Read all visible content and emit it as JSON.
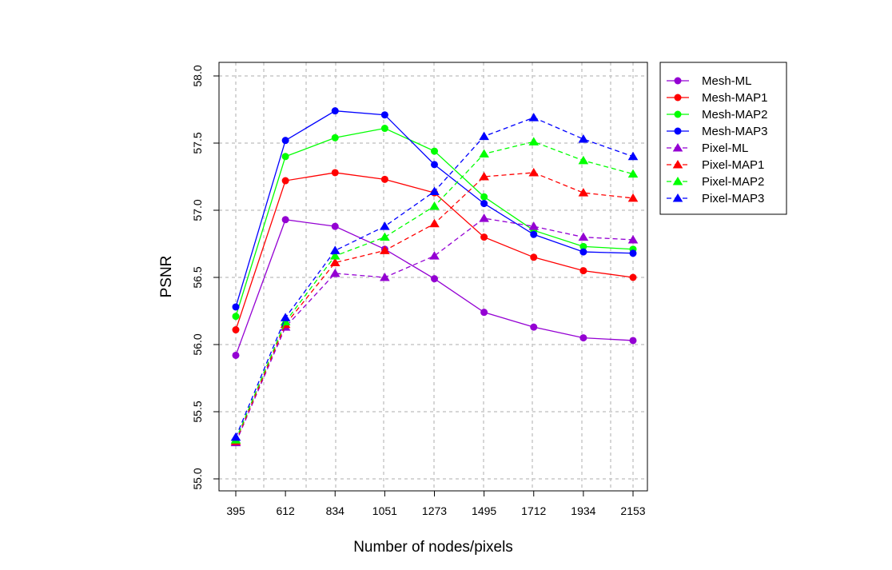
{
  "chart_data": {
    "type": "line",
    "title": "",
    "xlabel": "Number of nodes/pixels",
    "ylabel": "PSNR",
    "categories": [
      "395",
      "612",
      "834",
      "1051",
      "1273",
      "1495",
      "1712",
      "1934",
      "2153"
    ],
    "ylim": [
      55.0,
      58.0
    ],
    "yticks": [
      "55.0",
      "55.5",
      "56.0",
      "56.5",
      "57.0",
      "57.5",
      "58.0"
    ],
    "grid": true,
    "legend_position": "top-right, outside plot",
    "series": [
      {
        "name": "Mesh-ML",
        "color": "#9400D3",
        "linestyle": "solid",
        "marker": "circle",
        "values": [
          55.92,
          56.93,
          56.88,
          56.71,
          56.49,
          56.24,
          56.13,
          56.05,
          56.03
        ]
      },
      {
        "name": "Mesh-MAP1",
        "color": "#FF0000",
        "linestyle": "solid",
        "marker": "circle",
        "values": [
          56.11,
          57.22,
          57.28,
          57.23,
          57.13,
          56.8,
          56.65,
          56.55,
          56.5
        ]
      },
      {
        "name": "Mesh-MAP2",
        "color": "#00FF00",
        "linestyle": "solid",
        "marker": "circle",
        "values": [
          56.21,
          57.4,
          57.54,
          57.61,
          57.44,
          57.1,
          56.85,
          56.73,
          56.71
        ]
      },
      {
        "name": "Mesh-MAP3",
        "color": "#0000FF",
        "linestyle": "solid",
        "marker": "circle",
        "values": [
          56.28,
          57.52,
          57.74,
          57.71,
          57.34,
          57.05,
          56.82,
          56.69,
          56.68
        ]
      },
      {
        "name": "Pixel-ML",
        "color": "#9400D3",
        "linestyle": "dashed",
        "marker": "triangle",
        "values": [
          55.27,
          56.13,
          56.53,
          56.5,
          56.66,
          56.94,
          56.88,
          56.8,
          56.78
        ]
      },
      {
        "name": "Pixel-MAP1",
        "color": "#FF0000",
        "linestyle": "dashed",
        "marker": "triangle",
        "values": [
          55.28,
          56.15,
          56.61,
          56.7,
          56.9,
          57.25,
          57.28,
          57.13,
          57.09
        ]
      },
      {
        "name": "Pixel-MAP2",
        "color": "#00FF00",
        "linestyle": "dashed",
        "marker": "triangle",
        "values": [
          55.29,
          56.17,
          56.66,
          56.8,
          57.03,
          57.42,
          57.51,
          57.37,
          57.27
        ]
      },
      {
        "name": "Pixel-MAP3",
        "color": "#0000FF",
        "linestyle": "dashed",
        "marker": "triangle",
        "values": [
          55.31,
          56.2,
          56.7,
          56.88,
          57.14,
          57.55,
          57.69,
          57.53,
          57.4
        ]
      }
    ]
  }
}
